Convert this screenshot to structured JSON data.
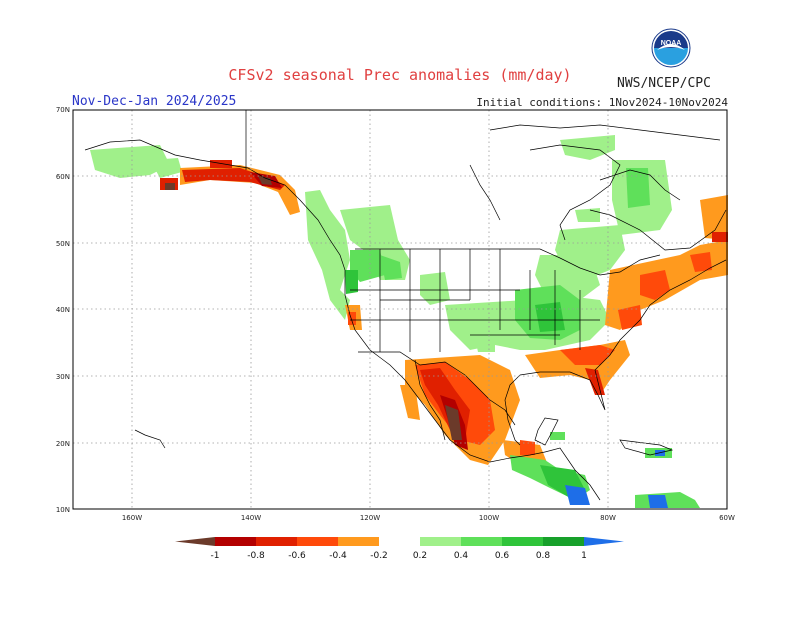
{
  "header": {
    "title": "CFSv2 seasonal Prec anomalies (mm/day)",
    "period": "Nov-Dec-Jan 2024/2025",
    "initial_conditions": "Initial conditions: 1Nov2024-10Nov2024",
    "agency": "NWS/NCEP/CPC",
    "logo_text": "NOAA"
  },
  "axes": {
    "lat_labels": [
      "70N",
      "60N",
      "50N",
      "40N",
      "30N",
      "20N",
      "10N"
    ],
    "lon_labels": [
      "160W",
      "140W",
      "120W",
      "100W",
      "80W",
      "60W"
    ]
  },
  "colorbar": {
    "labels": [
      "-1",
      "-0.8",
      "-0.6",
      "-0.4",
      "-0.2",
      "0.2",
      "0.4",
      "0.6",
      "0.8",
      "1"
    ],
    "colors": [
      "#6b3a2a",
      "#b30000",
      "#e02000",
      "#ff4a0a",
      "#ff9a1e",
      "#ffffff",
      "#a0f08a",
      "#5fe05a",
      "#2fc43a",
      "#17a02a",
      "#1e6ee8"
    ]
  },
  "colors": {
    "title": "#e04040",
    "period": "#2a36c8",
    "grid": "#9a9a9a"
  }
}
